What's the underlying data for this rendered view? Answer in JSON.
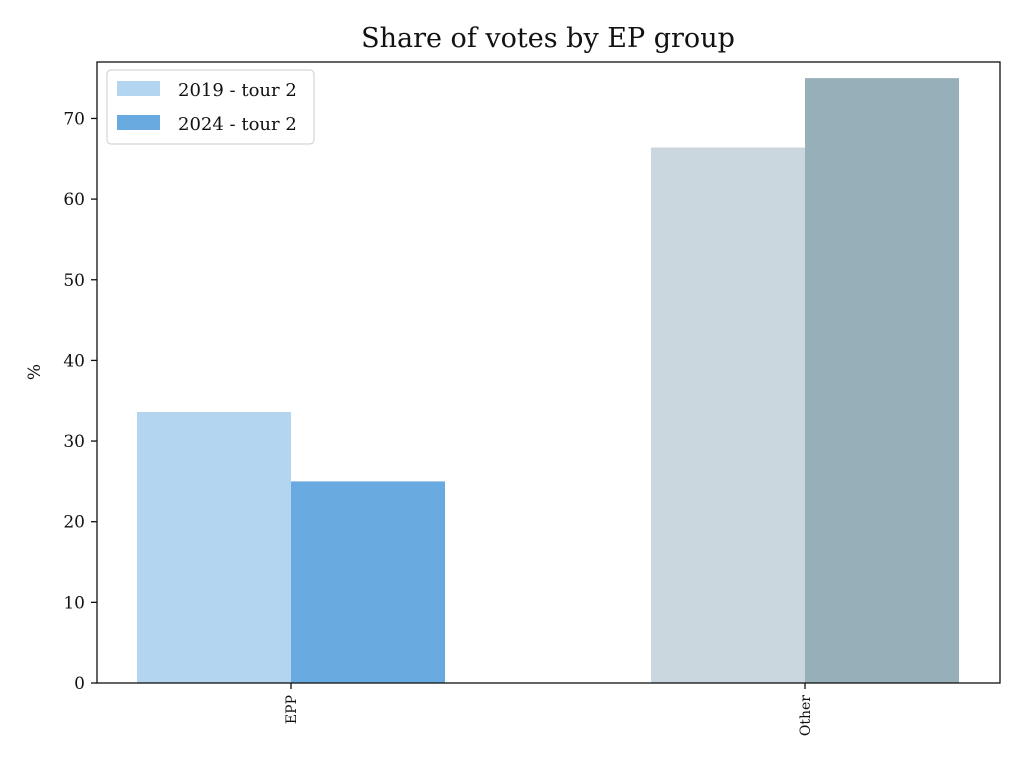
{
  "chart_data": {
    "type": "bar",
    "title": "Share of votes by EP group",
    "xlabel": "",
    "ylabel": "%",
    "ylim": [
      0,
      77
    ],
    "yticks": [
      0,
      10,
      20,
      30,
      40,
      50,
      60,
      70
    ],
    "categories": [
      "EPP",
      "Other"
    ],
    "series": [
      {
        "name": "2019 - tour 2",
        "values": [
          33.6,
          66.4
        ],
        "colors": [
          "#b3d5f0",
          "#cbd7de"
        ]
      },
      {
        "name": "2024 - tour 2",
        "values": [
          25.0,
          75.0
        ],
        "colors": [
          "#69abe0",
          "#97afb9"
        ]
      }
    ],
    "grid": false,
    "legend_position": "upper-left"
  }
}
